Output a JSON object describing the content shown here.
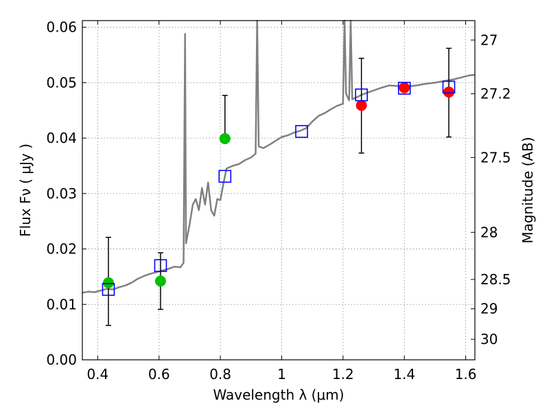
{
  "chart_data": {
    "type": "scatter",
    "xlabel": "Wavelength  λ (μm)",
    "ylabel": "Flux  Fν  ( μJy )",
    "ylabel_right": "Magnitude (AB)",
    "xlim": [
      0.35,
      1.63
    ],
    "ylim": [
      0.0,
      0.0612
    ],
    "grid": true,
    "x_ticks": [
      0.4,
      0.6,
      0.8,
      1.0,
      1.2,
      1.4,
      1.6
    ],
    "x_tick_labels": [
      "0.4",
      "0.6",
      "0.8",
      "1",
      "1.2",
      "1.4",
      "1.6"
    ],
    "y_ticks": [
      0.0,
      0.01,
      0.02,
      0.03,
      0.04,
      0.05,
      0.06
    ],
    "y_tick_labels": [
      "0.00",
      "0.01",
      "0.02",
      "0.03",
      "0.04",
      "0.05",
      "0.06"
    ],
    "right_ticks": [
      {
        "label": "27",
        "flux": 0.0577
      },
      {
        "label": "27.2",
        "flux": 0.048
      },
      {
        "label": "27.5",
        "flux": 0.0365
      },
      {
        "label": "28",
        "flux": 0.023
      },
      {
        "label": "28.5",
        "flux": 0.0145
      },
      {
        "label": "29",
        "flux": 0.0092
      },
      {
        "label": "30",
        "flux": 0.0037
      }
    ],
    "colors": {
      "spectrum": "#808080",
      "model_box": "#0000ff",
      "green_obs": "#00c000",
      "red_obs": "#ff0000",
      "errorbar": "#000000",
      "grid": "#888888"
    },
    "series": [
      {
        "kind": "spectrum",
        "points": [
          [
            0.35,
            0.0121
          ],
          [
            0.37,
            0.0123
          ],
          [
            0.39,
            0.0122
          ],
          [
            0.41,
            0.0125
          ],
          [
            0.43,
            0.0128
          ],
          [
            0.45,
            0.0127
          ],
          [
            0.47,
            0.0131
          ],
          [
            0.49,
            0.0134
          ],
          [
            0.51,
            0.0139
          ],
          [
            0.53,
            0.0146
          ],
          [
            0.55,
            0.0151
          ],
          [
            0.57,
            0.0155
          ],
          [
            0.59,
            0.0158
          ],
          [
            0.61,
            0.0161
          ],
          [
            0.63,
            0.0164
          ],
          [
            0.65,
            0.0168
          ],
          [
            0.67,
            0.0167
          ],
          [
            0.68,
            0.0175
          ],
          [
            0.685,
            0.0588
          ],
          [
            0.688,
            0.021
          ],
          [
            0.7,
            0.0245
          ],
          [
            0.71,
            0.028
          ],
          [
            0.72,
            0.029
          ],
          [
            0.73,
            0.027
          ],
          [
            0.74,
            0.031
          ],
          [
            0.75,
            0.028
          ],
          [
            0.76,
            0.032
          ],
          [
            0.77,
            0.027
          ],
          [
            0.78,
            0.026
          ],
          [
            0.79,
            0.029
          ],
          [
            0.8,
            0.0288
          ],
          [
            0.81,
            0.0318
          ],
          [
            0.82,
            0.0345
          ],
          [
            0.84,
            0.035
          ],
          [
            0.86,
            0.0353
          ],
          [
            0.88,
            0.036
          ],
          [
            0.9,
            0.0365
          ],
          [
            0.915,
            0.0372
          ],
          [
            0.92,
            0.066
          ],
          [
            0.925,
            0.0385
          ],
          [
            0.94,
            0.0382
          ],
          [
            0.96,
            0.0388
          ],
          [
            0.98,
            0.0395
          ],
          [
            1.0,
            0.0402
          ],
          [
            1.02,
            0.0405
          ],
          [
            1.04,
            0.041
          ],
          [
            1.06,
            0.0413
          ],
          [
            1.08,
            0.0418
          ],
          [
            1.1,
            0.043
          ],
          [
            1.12,
            0.044
          ],
          [
            1.14,
            0.0445
          ],
          [
            1.16,
            0.0452
          ],
          [
            1.18,
            0.0458
          ],
          [
            1.2,
            0.0462
          ],
          [
            1.205,
            0.066
          ],
          [
            1.21,
            0.048
          ],
          [
            1.22,
            0.0468
          ],
          [
            1.225,
            0.066
          ],
          [
            1.23,
            0.047
          ],
          [
            1.26,
            0.0478
          ],
          [
            1.29,
            0.0484
          ],
          [
            1.32,
            0.049
          ],
          [
            1.35,
            0.0495
          ],
          [
            1.38,
            0.0494
          ],
          [
            1.41,
            0.0493
          ],
          [
            1.44,
            0.0495
          ],
          [
            1.47,
            0.0498
          ],
          [
            1.5,
            0.05
          ],
          [
            1.53,
            0.0503
          ],
          [
            1.56,
            0.0506
          ],
          [
            1.59,
            0.051
          ],
          [
            1.61,
            0.0513
          ],
          [
            1.63,
            0.0514
          ]
        ]
      },
      {
        "kind": "model_boxes",
        "points": [
          [
            0.435,
            0.0127
          ],
          [
            0.605,
            0.017
          ],
          [
            0.815,
            0.0331
          ],
          [
            1.065,
            0.0412
          ],
          [
            1.26,
            0.0478
          ],
          [
            1.4,
            0.049
          ],
          [
            1.545,
            0.0492
          ]
        ]
      },
      {
        "kind": "observed_green",
        "points": [
          [
            0.435,
            0.0139
          ],
          [
            0.605,
            0.0142
          ],
          [
            0.815,
            0.0399
          ]
        ],
        "error_low": [
          0.0062,
          0.0091,
          null
        ],
        "error_high": [
          0.0221,
          0.0193,
          0.0477
        ]
      },
      {
        "kind": "observed_red",
        "points": [
          [
            1.26,
            0.0459
          ],
          [
            1.4,
            0.0491
          ],
          [
            1.545,
            0.0483
          ]
        ],
        "error_low": [
          0.0373,
          null,
          0.0402
        ],
        "error_high": [
          0.0544,
          null,
          0.0562
        ]
      }
    ]
  }
}
